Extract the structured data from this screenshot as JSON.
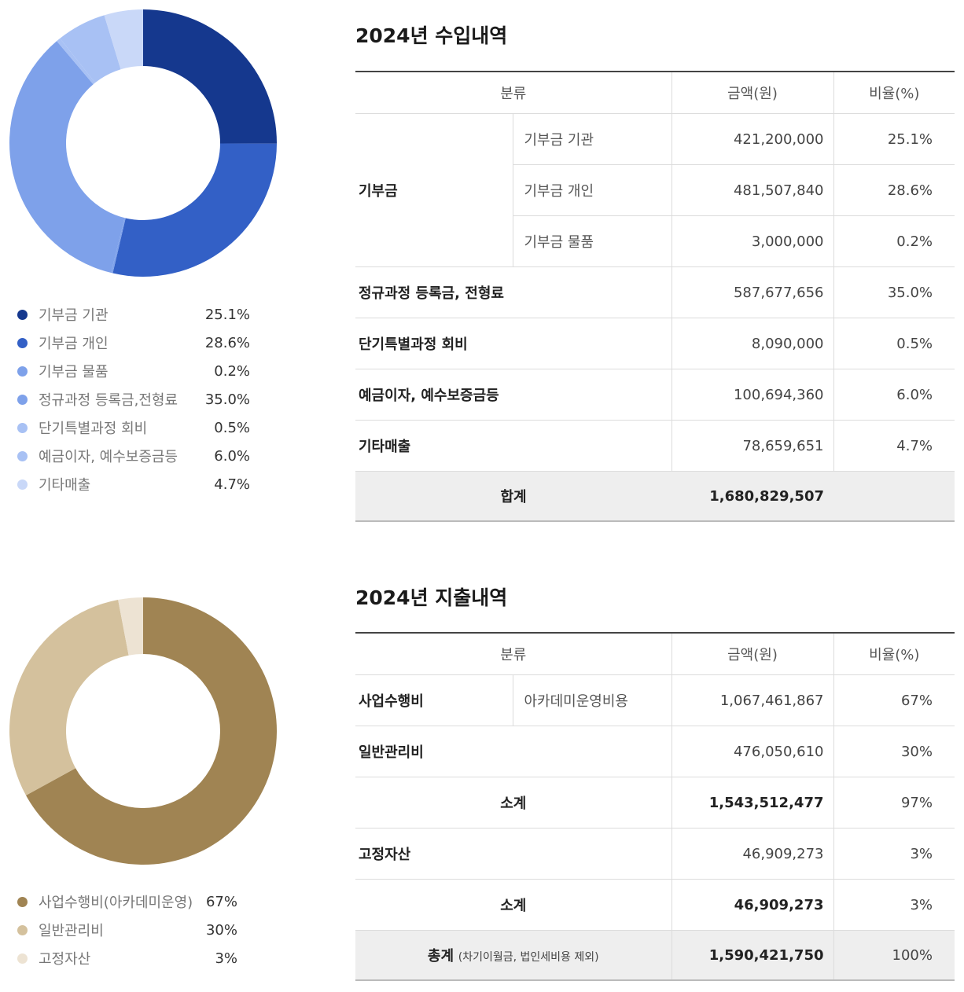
{
  "chart_data": [
    {
      "type": "pie",
      "style": "donut",
      "categories": [
        "기부금 기관",
        "기부금 개인",
        "기부금 물품",
        "정규과정 등록금,전형료",
        "단기특별과정 회비",
        "예금이자, 예수보증금등",
        "기타매출"
      ],
      "values": [
        25.1,
        28.6,
        0.2,
        35.0,
        0.5,
        6.0,
        4.7
      ],
      "value_labels": [
        "25.1%",
        "28.6%",
        "0.2%",
        "35.0%",
        "0.5%",
        "6.0%",
        "4.7%"
      ],
      "colors": [
        "#15388e",
        "#3360c6",
        "#7ea1ea",
        "#7ea1ea",
        "#a8c1f4",
        "#a8c1f4",
        "#c9d8f8"
      ],
      "legend_position": "bottom"
    },
    {
      "type": "pie",
      "style": "donut",
      "categories": [
        "사업수행비(아카데미운영)",
        "일반관리비",
        "고정자산"
      ],
      "values": [
        67,
        30,
        3
      ],
      "value_labels": [
        "67%",
        "30%",
        "3%"
      ],
      "colors": [
        "#a08453",
        "#d4c19d",
        "#ede3d3"
      ],
      "legend_position": "bottom"
    }
  ],
  "income": {
    "title": "2024년 수입내역",
    "headers": {
      "category": "분류",
      "amount": "금액(원)",
      "ratio": "비율(%)"
    },
    "donation_group": "기부금",
    "donation_rows": [
      {
        "sub": "기부금 기관",
        "amount": "421,200,000",
        "ratio": "25.1%"
      },
      {
        "sub": "기부금 개인",
        "amount": "481,507,840",
        "ratio": "28.6%"
      },
      {
        "sub": "기부금 물품",
        "amount": "3,000,000",
        "ratio": "0.2%"
      }
    ],
    "rows": [
      {
        "category": "정규과정 등록금, 전형료",
        "amount": "587,677,656",
        "ratio": "35.0%"
      },
      {
        "category": "단기특별과정 회비",
        "amount": "8,090,000",
        "ratio": "0.5%"
      },
      {
        "category": "예금이자, 예수보증금등",
        "amount": "100,694,360",
        "ratio": "6.0%"
      },
      {
        "category": "기타매출",
        "amount": "78,659,651",
        "ratio": "4.7%"
      }
    ],
    "total": {
      "label": "합계",
      "amount": "1,680,829,507",
      "ratio": ""
    }
  },
  "expense": {
    "title": "2024년 지출내역",
    "headers": {
      "category": "분류",
      "amount": "금액(원)",
      "ratio": "비율(%)"
    },
    "business": {
      "category": "사업수행비",
      "sub": "아카데미운영비용",
      "amount": "1,067,461,867",
      "ratio": "67%"
    },
    "general": {
      "category": "일반관리비",
      "amount": "476,050,610",
      "ratio": "30%"
    },
    "subtotal1": {
      "label": "소계",
      "amount": "1,543,512,477",
      "ratio": "97%"
    },
    "fixed": {
      "category": "고정자산",
      "amount": "46,909,273",
      "ratio": "3%"
    },
    "subtotal2": {
      "label": "소계",
      "amount": "46,909,273",
      "ratio": "3%"
    },
    "total": {
      "label": "총계",
      "note": "(차기이월금, 법인세비용 제외)",
      "amount": "1,590,421,750",
      "ratio": "100%"
    }
  }
}
